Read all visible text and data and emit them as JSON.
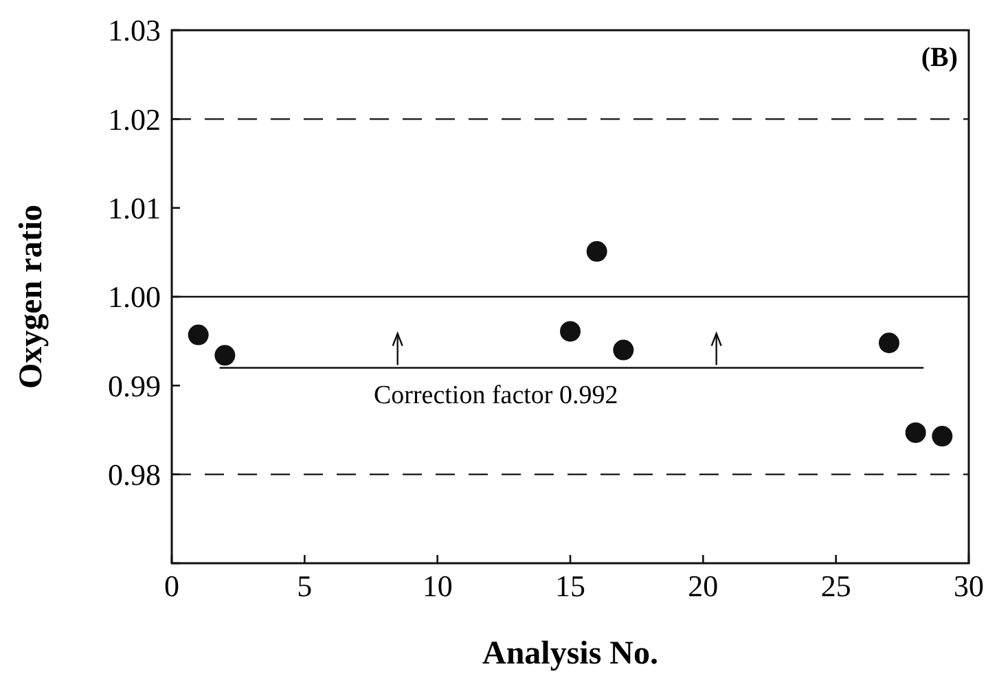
{
  "chart_data": {
    "type": "scatter",
    "xlabel": "Analysis No.",
    "ylabel": "Oxygen ratio",
    "xlim": [
      0,
      30
    ],
    "xticks": [
      0,
      5,
      10,
      15,
      20,
      25,
      30
    ],
    "ylim": [
      0.97,
      1.03
    ],
    "yticks": [
      {
        "value": 0.97,
        "label": null
      },
      0.98,
      {
        "value": 0.99,
        "label": "0.99"
      },
      {
        "value": 1.0,
        "label": "1.00"
      },
      1.01,
      1.02,
      1.03
    ],
    "marker": "circle",
    "grid": false,
    "series": [
      {
        "color": "#111111",
        "x": [
          1,
          2,
          15,
          16,
          17,
          27,
          28,
          29
        ],
        "values": [
          0.9957,
          0.9934,
          0.9961,
          1.0051,
          0.994,
          0.9948,
          0.9847,
          0.9843
        ]
      },
      {
        "type": "line",
        "color": "#111111",
        "x": [
          1.8,
          28.3
        ],
        "values": [
          0.992,
          0.992
        ],
        "marker": "none"
      }
    ],
    "ref_lines": [
      {
        "axis": "y",
        "value": 1.02,
        "line_style": "dashed",
        "color": "#111111"
      },
      {
        "axis": "y",
        "value": 1.0,
        "line_style": "solid",
        "color": "#111111"
      },
      {
        "axis": "y",
        "value": 0.98,
        "line_style": "dashed",
        "color": "#111111"
      }
    ],
    "annotations": [
      "(B)",
      {
        "text": "Correction factor 0.992",
        "x": 12.2,
        "y": 0.992
      }
    ]
  }
}
